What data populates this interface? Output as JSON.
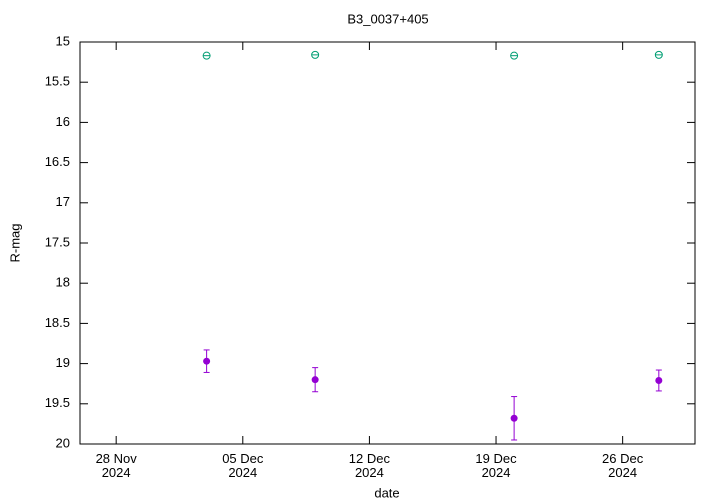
{
  "chart_data": {
    "type": "scatter",
    "title": "B3_0037+405",
    "x_label": "date",
    "y_label": "R-mag",
    "x": [
      "2024-12-03",
      "2024-12-09",
      "2024-12-20",
      "2024-12-28"
    ],
    "series": [
      {
        "color": "#009e73",
        "marker": "circle-plus",
        "values": [
          15.17,
          15.16,
          15.17,
          15.16
        ]
      },
      {
        "color": "#9400d3",
        "marker": "dot",
        "values": [
          18.97,
          19.2,
          19.68,
          19.21
        ],
        "errors": [
          0.14,
          0.15,
          0.27,
          0.13
        ]
      }
    ],
    "xlim": [
      "2024-11-26",
      "2024-12-30"
    ],
    "xticks": [
      {
        "value": "2024-11-28",
        "label": "28 Nov\n2024"
      },
      {
        "value": "2024-12-05",
        "label": "05 Dec\n2024"
      },
      {
        "value": "2024-12-12",
        "label": "12 Dec\n2024"
      },
      {
        "value": "2024-12-19",
        "label": "19 Dec\n2024"
      },
      {
        "value": "2024-12-26",
        "label": "26 Dec\n2024"
      }
    ],
    "ylim": [
      15,
      20
    ],
    "y_inverted": true,
    "yticks": [
      15,
      15.5,
      16,
      16.5,
      17,
      17.5,
      18,
      18.5,
      19,
      19.5,
      20
    ]
  }
}
